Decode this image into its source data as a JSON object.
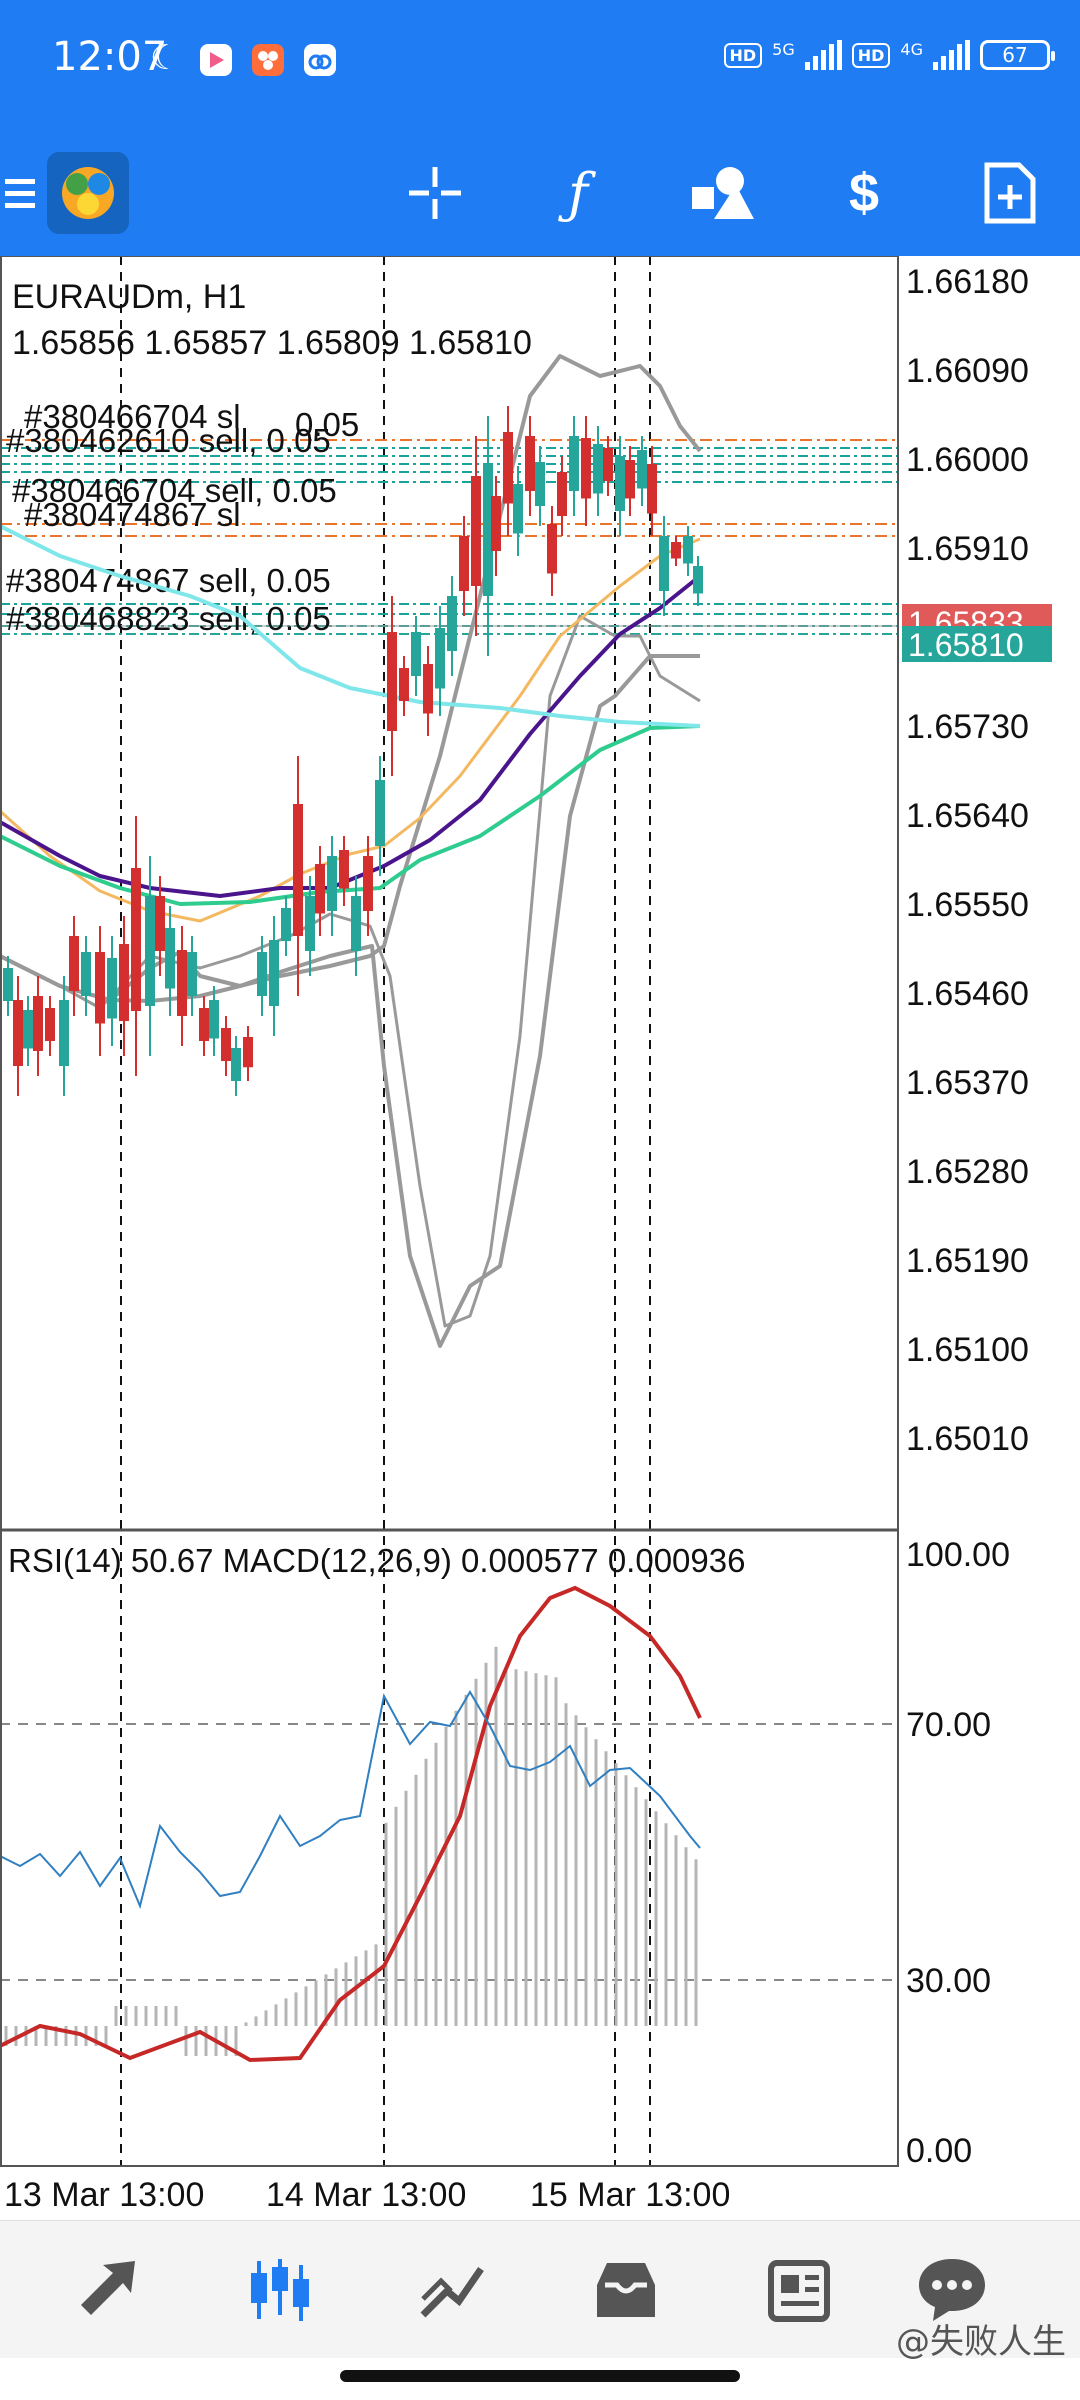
{
  "status_bar": {
    "time": "12:07",
    "network_1": "5G",
    "network_2": "4G",
    "hd_1": "HD",
    "hd_2": "HD",
    "battery": "67"
  },
  "toolbar": {
    "items": [
      "menu-icon",
      "app-logo",
      "crosshair-icon",
      "function-icon",
      "objects-icon",
      "trade-icon",
      "new-order-icon"
    ]
  },
  "chart": {
    "symbol_timeframe": "EURAUDm, H1",
    "ohlc": "1.65856 1.65857 1.65809 1.65810",
    "price_labels": [
      "1.66180",
      "1.66090",
      "1.66000",
      "1.65910",
      "1.65730",
      "1.65640",
      "1.65550",
      "1.65460",
      "1.65370",
      "1.65280",
      "1.65190",
      "1.65100",
      "1.65010"
    ],
    "bid_badge": "1.65833",
    "last_badge": "1.65810",
    "order_labels": [
      "#380466704 sl",
      "0.05",
      "#380462610 sell, 0.05",
      "#380466704 sell, 0.05",
      "#380474867 sl",
      "#380474867 sell, 0.05",
      "#380468823 sell, 0.05"
    ],
    "indicator_title": "RSI(14) 50.67 MACD(12,26,9) 0.000577 0.000936",
    "indicator_labels": [
      "100.00",
      "70.00",
      "30.00",
      "0.00"
    ],
    "time_labels": [
      "13 Mar 13:00",
      "14 Mar 13:00",
      "15 Mar 13:00"
    ],
    "colors": {
      "bull": "#26a69a",
      "bear": "#d32f2f",
      "ma_yellow": "#f4b860",
      "ma_purple": "#4a148c",
      "ma_green": "#2ecc8f",
      "ma_cyan": "#7fe6ea",
      "band": "#999999",
      "rsi": "#2f7fc1",
      "signal": "#c62828"
    }
  },
  "bottom_nav": {
    "items": [
      "quotes-icon",
      "chart-icon",
      "trade-icon",
      "history-icon",
      "news-icon",
      "messages-icon"
    ]
  },
  "watermark": "@失败人生"
}
